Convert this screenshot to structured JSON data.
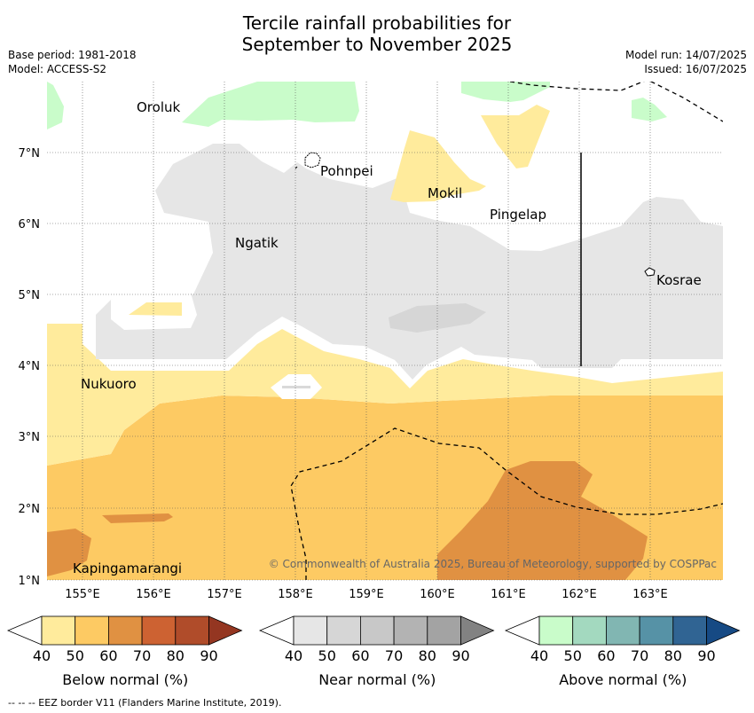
{
  "header": {
    "title_line1": "Tercile rainfall probabilities for",
    "title_line2": "September to November 2025",
    "base_period": "Base period: 1981-2018",
    "model": "Model: ACCESS-S2",
    "model_run": "Model run: 14/07/2025",
    "issued": "Issued: 16/07/2025"
  },
  "map": {
    "lon_ticks": [
      "155°E",
      "156°E",
      "157°E",
      "158°E",
      "159°E",
      "160°E",
      "161°E",
      "162°E",
      "163°E"
    ],
    "lat_ticks": [
      "7°N",
      "6°N",
      "5°N",
      "4°N",
      "3°N",
      "2°N",
      "1°N"
    ],
    "places": {
      "oroluk": "Oroluk",
      "pohnpei": "Pohnpei",
      "mokil": "Mokil",
      "pingelap": "Pingelap",
      "ngatik": "Ngatik",
      "kosrae": "Kosrae",
      "nukuoro": "Nukuoro",
      "kapingamarangi": "Kapingamarangi"
    },
    "copyright": "© Commonwealth of Australia 2025, Bureau of Meteorology, supported by COSPPac"
  },
  "legends": [
    {
      "label": "Below normal (%)",
      "ticks": [
        "40",
        "50",
        "60",
        "70",
        "80",
        "90"
      ],
      "colors": [
        "#ffeb9c",
        "#fdca63",
        "#e09142",
        "#cd6232",
        "#b04c2a",
        "#943621"
      ]
    },
    {
      "label": "Near normal (%)",
      "ticks": [
        "40",
        "50",
        "60",
        "70",
        "80",
        "90"
      ],
      "colors": [
        "#e6e6e6",
        "#d6d6d6",
        "#c8c8c8",
        "#b3b3b3",
        "#a3a3a3",
        "#828282"
      ]
    },
    {
      "label": "Above normal (%)",
      "ticks": [
        "40",
        "50",
        "60",
        "70",
        "80",
        "90"
      ],
      "colors": [
        "#c9fcca",
        "#a3d9bf",
        "#81b6b2",
        "#5692a6",
        "#306493",
        "#164a84"
      ]
    }
  ],
  "footer": "-- -- -- EEZ border V11 (Flanders Marine Institute, 2019)."
}
